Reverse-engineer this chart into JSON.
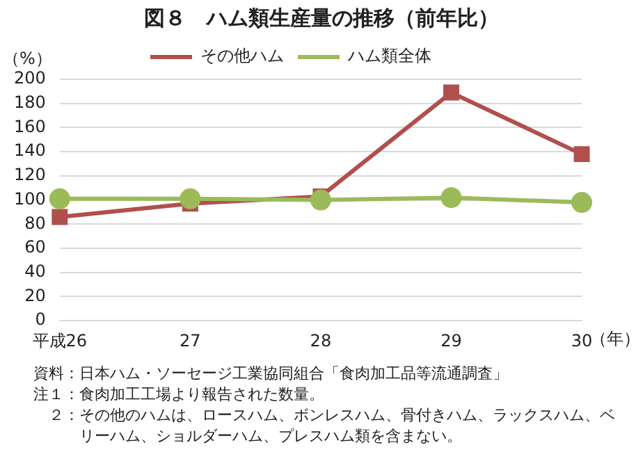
{
  "chart_data": {
    "type": "line",
    "title": "図８　ハム類生産量の推移（前年比）",
    "ylabel": "（%）",
    "xlabel": "（年）",
    "categories": [
      "平成26",
      "27",
      "28",
      "29",
      "30"
    ],
    "series": [
      {
        "name": "その他ハム",
        "color": "#b0504c",
        "values": [
          86,
          97,
          103,
          189,
          138
        ],
        "marker": "square"
      },
      {
        "name": "ハム類全体",
        "color": "#9bbb59",
        "values": [
          101,
          101,
          100,
          102,
          98
        ],
        "marker": "circle"
      }
    ],
    "ylim": [
      0,
      200
    ],
    "yticks": [
      0,
      20,
      40,
      60,
      80,
      100,
      120,
      140,
      160,
      180,
      200
    ],
    "grid": "y",
    "legend": "top",
    "line_style": "solid",
    "annotations": [
      "資料：日本ハム・ソーセージ工業協同組合「食肉加工品等流通調査」",
      "注１：食肉加工工場より報告された数量。",
      "　２：その他のハムは、ロースハム、ボンレスハム、骨付きハム、ラックスハム、ベリーハム、ショルダーハム、プレスハム類を含まない。"
    ]
  }
}
